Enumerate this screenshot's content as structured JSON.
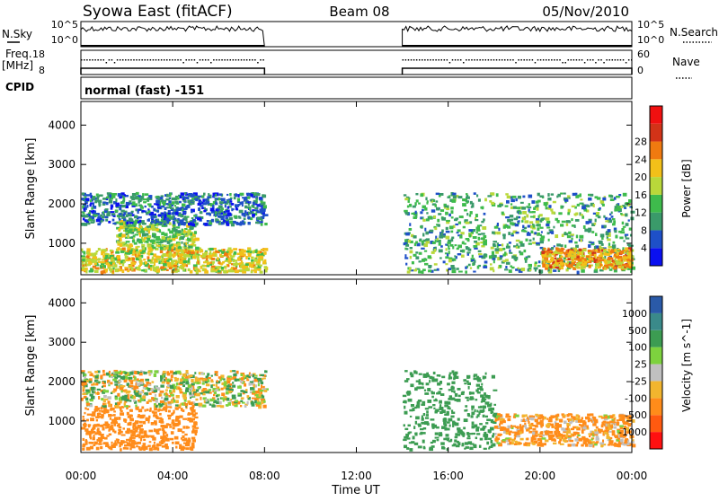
{
  "header": {
    "title": "Syowa East (fitACF)",
    "beam": "Beam 08",
    "date": "05/Nov/2010"
  },
  "top_panels": {
    "nsky_label": "N.Sky",
    "nsky_ticks": [
      "10^5",
      "10^0"
    ],
    "nsearch_label": "N.Search",
    "nsearch_ticks": [
      "10^5",
      "10^0"
    ],
    "freq_label_1": "Freq.",
    "freq_label_2": "[MHz]",
    "freq_ticks": [
      "18",
      "8"
    ],
    "nave_label": "Nave",
    "nave_ticks": [
      "60",
      "0"
    ],
    "cpid_label": "CPID",
    "cpid_value": "normal (fast) -151"
  },
  "colors": {
    "power_scale": [
      "#0a10f0",
      "#1e50c8",
      "#3a9a6a",
      "#3ebb4c",
      "#b9d83a",
      "#f2c019",
      "#f07a10",
      "#d23318",
      "#f01010"
    ],
    "velocity_scale": [
      "#ff1010",
      "#ff5a10",
      "#ff8c1a",
      "#f2b52e",
      "#c0c0c0",
      "#7dd23e",
      "#3c9c52",
      "#3a8a8a",
      "#2a5aa8"
    ]
  },
  "chart_data": [
    {
      "type": "heatmap",
      "title": "Power",
      "ylabel": "Slant Range [km]",
      "ylim": [
        200,
        4600
      ],
      "yticks": [
        "1000",
        "2000",
        "3000",
        "4000"
      ],
      "colorbar_label": "Power [dB]",
      "colorbar_ticks": [
        "4",
        "8",
        "12",
        "16",
        "20",
        "24",
        "28"
      ],
      "no_data_gap_hours": [
        8.0,
        14.0
      ],
      "echo_bands": [
        {
          "t": [
            0.0,
            8.0
          ],
          "range_km": [
            300,
            900
          ],
          "level_db": 20
        },
        {
          "t": [
            1.5,
            5.0
          ],
          "range_km": [
            900,
            1600
          ],
          "level_db": 16
        },
        {
          "t": [
            0.0,
            8.0
          ],
          "range_km": [
            1500,
            2300
          ],
          "level_db": 8
        },
        {
          "t": [
            14.0,
            24.0
          ],
          "range_km": [
            300,
            2300
          ],
          "level_db": 12
        },
        {
          "t": [
            20.0,
            24.0
          ],
          "range_km": [
            400,
            900
          ],
          "level_db": 24
        }
      ]
    },
    {
      "type": "heatmap",
      "title": "Velocity",
      "ylabel": "Slant Range [km]",
      "ylim": [
        200,
        4600
      ],
      "yticks": [
        "1000",
        "2000",
        "3000",
        "4000"
      ],
      "colorbar_label": "Velocity [m s^-1]",
      "colorbar_ticks": [
        "-1000",
        "-500",
        "-100",
        "-25",
        "25",
        "100",
        "500",
        "1000"
      ],
      "no_data_gap_hours": [
        8.0,
        14.0
      ],
      "echo_bands": [
        {
          "t": [
            0.0,
            5.0
          ],
          "range_km": [
            300,
            1400
          ],
          "velocity": -300
        },
        {
          "t": [
            0.0,
            8.0
          ],
          "range_km": [
            1400,
            2300
          ],
          "velocity": 0
        },
        {
          "t": [
            14.0,
            18.0
          ],
          "range_km": [
            300,
            2300
          ],
          "velocity": 300
        },
        {
          "t": [
            18.0,
            24.0
          ],
          "range_km": [
            400,
            1200
          ],
          "velocity": -150
        }
      ]
    }
  ],
  "xaxis": {
    "label": "Time UT",
    "ticks": [
      "00:00",
      "04:00",
      "08:00",
      "12:00",
      "16:00",
      "20:00",
      "00:00"
    ]
  }
}
